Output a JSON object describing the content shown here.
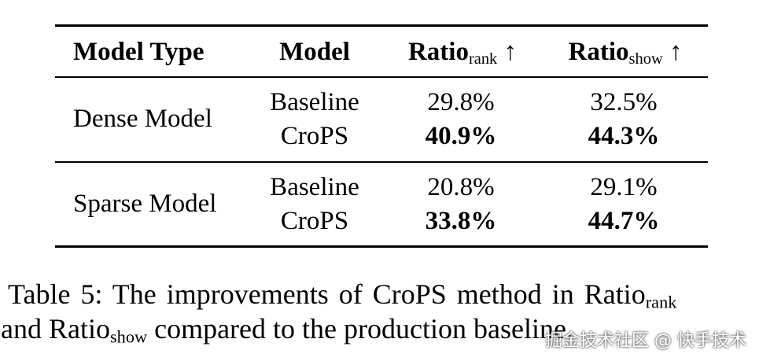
{
  "table": {
    "header": [
      "Model Type",
      "Model",
      {
        "main": "Ratio",
        "sub": "rank",
        "arrow": "↑"
      },
      {
        "main": "Ratio",
        "sub": "show",
        "arrow": "↑"
      }
    ],
    "groups": [
      {
        "model_type": "Dense Model",
        "rows": [
          [
            "Baseline",
            "29.8%",
            "32.5%"
          ],
          [
            "CroPS",
            "40.9%",
            "44.3%"
          ]
        ]
      },
      {
        "model_type": "Sparse Model",
        "rows": [
          [
            "Baseline",
            "20.8%",
            "29.1%"
          ],
          [
            "CroPS",
            "33.8%",
            "44.7%"
          ]
        ]
      }
    ]
  },
  "caption": [
    "Table 5: The improvements of CroPS method in Ratio",
    "rank",
    " and Ratio",
    "show",
    " compared to the production baseline."
  ],
  "watermark": "掘金技术社区 @ 快手技术"
}
